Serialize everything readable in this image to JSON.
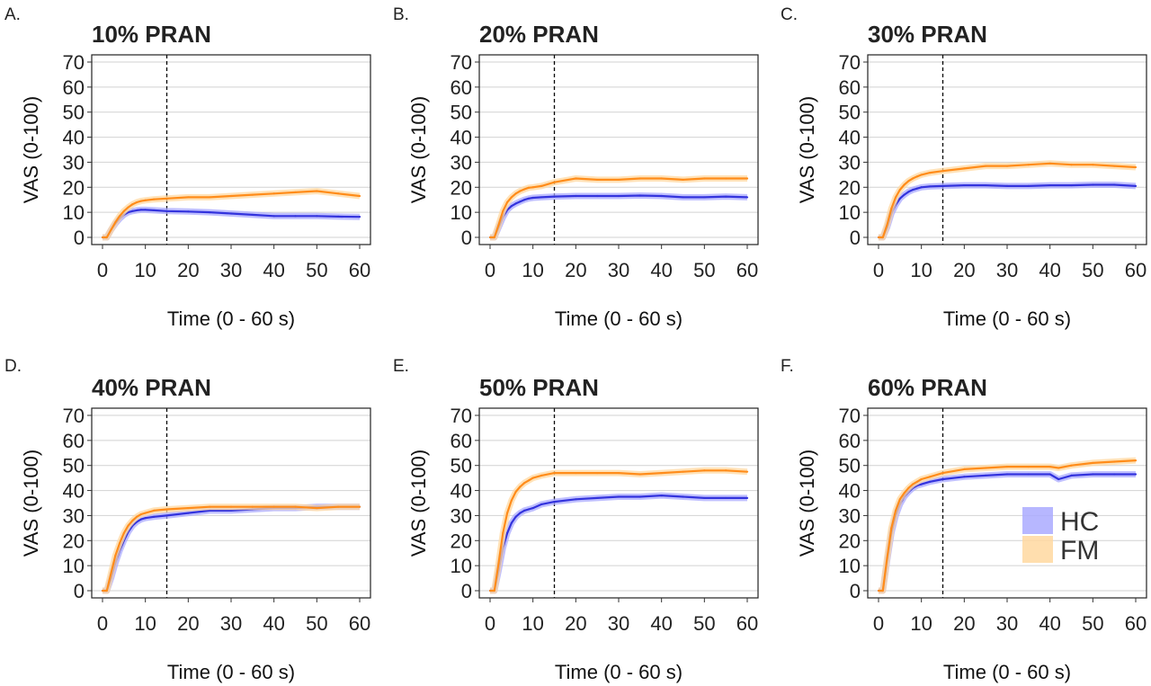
{
  "chart_data": [
    {
      "type": "line",
      "panel": "A.",
      "title": "10% PRAN",
      "xlabel": "Time (0 - 60 s)",
      "ylabel": "VAS (0-100)",
      "xlim": [
        0,
        60
      ],
      "ylim": [
        0,
        70
      ],
      "x_ticks": [
        "0",
        "10",
        "20",
        "30",
        "40",
        "50",
        "60"
      ],
      "y_ticks": [
        "0",
        "10",
        "20",
        "30",
        "40",
        "50",
        "60",
        "70"
      ],
      "marker_x": 15,
      "grid": "horizontal",
      "x": [
        0,
        1,
        2,
        3,
        4,
        5,
        6,
        7,
        8,
        9,
        10,
        12,
        15,
        20,
        25,
        30,
        35,
        40,
        45,
        50,
        55,
        60
      ],
      "series": [
        {
          "name": "HC",
          "color": "#3333dd",
          "band_color": "#aaaaff",
          "values": [
            0,
            0,
            3,
            5.5,
            7.5,
            9,
            10,
            10.5,
            10.8,
            11,
            11,
            10.8,
            10.5,
            10.3,
            10,
            9.5,
            9,
            8.5,
            8.5,
            8.5,
            8.3,
            8.2
          ]
        },
        {
          "name": "FM",
          "color": "#ff8c1a",
          "band_color": "#ffd8a0",
          "values": [
            0,
            0,
            3,
            6,
            8.5,
            10.5,
            12,
            13.2,
            14,
            14.5,
            14.8,
            15.2,
            15.5,
            16,
            16,
            16.5,
            17,
            17.5,
            18,
            18.5,
            17.5,
            16.5
          ]
        }
      ]
    },
    {
      "type": "line",
      "panel": "B.",
      "title": "20% PRAN",
      "xlabel": "Time (0 - 60 s)",
      "ylabel": "VAS (0-100)",
      "xlim": [
        0,
        60
      ],
      "ylim": [
        0,
        70
      ],
      "x_ticks": [
        "0",
        "10",
        "20",
        "30",
        "40",
        "50",
        "60"
      ],
      "y_ticks": [
        "0",
        "10",
        "20",
        "30",
        "40",
        "50",
        "60",
        "70"
      ],
      "marker_x": 15,
      "grid": "horizontal",
      "x": [
        0,
        1,
        2,
        3,
        4,
        5,
        6,
        7,
        8,
        9,
        10,
        12,
        15,
        20,
        25,
        30,
        35,
        40,
        45,
        50,
        55,
        60
      ],
      "series": [
        {
          "name": "HC",
          "color": "#3333dd",
          "band_color": "#aaaaff",
          "values": [
            0,
            0,
            4,
            8,
            11,
            12.5,
            13.5,
            14.3,
            15,
            15.5,
            15.8,
            16,
            16.3,
            16.5,
            16.5,
            16.5,
            16.7,
            16.5,
            16,
            16,
            16.3,
            16
          ]
        },
        {
          "name": "FM",
          "color": "#ff8c1a",
          "band_color": "#ffd8a0",
          "values": [
            0,
            0,
            5,
            10.5,
            14,
            16,
            17.5,
            18.5,
            19.2,
            19.8,
            20,
            20.5,
            22,
            23.5,
            23,
            23,
            23.5,
            23.5,
            23,
            23.5,
            23.5,
            23.5
          ]
        }
      ]
    },
    {
      "type": "line",
      "panel": "C.",
      "title": "30% PRAN",
      "xlabel": "Time (0 - 60 s)",
      "ylabel": "VAS (0-100)",
      "xlim": [
        0,
        60
      ],
      "ylim": [
        0,
        70
      ],
      "x_ticks": [
        "0",
        "10",
        "20",
        "30",
        "40",
        "50",
        "60"
      ],
      "y_ticks": [
        "0",
        "10",
        "20",
        "30",
        "40",
        "50",
        "60",
        "70"
      ],
      "marker_x": 15,
      "grid": "horizontal",
      "x": [
        0,
        1,
        2,
        3,
        4,
        5,
        6,
        7,
        8,
        9,
        10,
        12,
        15,
        20,
        25,
        30,
        35,
        40,
        45,
        50,
        55,
        60
      ],
      "series": [
        {
          "name": "HC",
          "color": "#3333dd",
          "band_color": "#aaaaff",
          "values": [
            0,
            0,
            4,
            9.5,
            13,
            15.5,
            17,
            18.2,
            19,
            19.5,
            20,
            20.3,
            20.5,
            20.8,
            20.8,
            20.5,
            20.5,
            20.8,
            20.8,
            21,
            21,
            20.5
          ]
        },
        {
          "name": "FM",
          "color": "#ff8c1a",
          "band_color": "#ffd8a0",
          "values": [
            0,
            0,
            5,
            11.5,
            16,
            19,
            21,
            22.5,
            23.5,
            24.3,
            25,
            25.8,
            26.5,
            27.5,
            28.5,
            28.5,
            29,
            29.5,
            29,
            29,
            28.5,
            28
          ]
        }
      ]
    },
    {
      "type": "line",
      "panel": "D.",
      "title": "40% PRAN",
      "xlabel": "Time (0 - 60 s)",
      "ylabel": "VAS (0-100)",
      "xlim": [
        0,
        60
      ],
      "ylim": [
        0,
        70
      ],
      "x_ticks": [
        "0",
        "10",
        "20",
        "30",
        "40",
        "50",
        "60"
      ],
      "y_ticks": [
        "0",
        "10",
        "20",
        "30",
        "40",
        "50",
        "60",
        "70"
      ],
      "marker_x": 15,
      "grid": "horizontal",
      "x": [
        0,
        1,
        2,
        3,
        4,
        5,
        6,
        7,
        8,
        9,
        10,
        12,
        15,
        20,
        25,
        30,
        35,
        40,
        45,
        50,
        55,
        60
      ],
      "series": [
        {
          "name": "HC",
          "color": "#3333dd",
          "band_color": "#aaaaff",
          "values": [
            0,
            0,
            5,
            11,
            16,
            20,
            23.5,
            26,
            27.5,
            28.5,
            29,
            29.5,
            30,
            31,
            32,
            32,
            32.5,
            33,
            33,
            33.5,
            33.5,
            33.5
          ]
        },
        {
          "name": "FM",
          "color": "#ff8c1a",
          "band_color": "#ffd8a0",
          "values": [
            0,
            0,
            7,
            14,
            19,
            23,
            26,
            28,
            29.5,
            30.5,
            31,
            32,
            32.5,
            33,
            33.5,
            33.5,
            33.5,
            33.5,
            33.5,
            33,
            33.5,
            33.5
          ]
        }
      ]
    },
    {
      "type": "line",
      "panel": "E.",
      "title": "50% PRAN",
      "xlabel": "Time (0 - 60 s)",
      "ylabel": "VAS (0-100)",
      "xlim": [
        0,
        60
      ],
      "ylim": [
        0,
        70
      ],
      "x_ticks": [
        "0",
        "10",
        "20",
        "30",
        "40",
        "50",
        "60"
      ],
      "y_ticks": [
        "0",
        "10",
        "20",
        "30",
        "40",
        "50",
        "60",
        "70"
      ],
      "marker_x": 15,
      "grid": "horizontal",
      "x": [
        0,
        1,
        2,
        3,
        4,
        5,
        6,
        7,
        8,
        9,
        10,
        12,
        15,
        20,
        25,
        30,
        35,
        40,
        45,
        50,
        55,
        60
      ],
      "series": [
        {
          "name": "HC",
          "color": "#3333dd",
          "band_color": "#aaaaff",
          "values": [
            0,
            0,
            8,
            17,
            23,
            27,
            29.5,
            31,
            32,
            32.5,
            33,
            34.5,
            35.5,
            36.5,
            37,
            37.5,
            37.5,
            38,
            37.5,
            37,
            37,
            37
          ]
        },
        {
          "name": "FM",
          "color": "#ff8c1a",
          "band_color": "#ffd8a0",
          "values": [
            0,
            0,
            11,
            23,
            31,
            36,
            39.5,
            41.5,
            43,
            44,
            45,
            46,
            47,
            47,
            47,
            47,
            46.5,
            47,
            47.5,
            48,
            48,
            47.5
          ]
        }
      ]
    },
    {
      "type": "line",
      "panel": "F.",
      "title": "60% PRAN",
      "xlabel": "Time (0 - 60 s)",
      "ylabel": "VAS (0-100)",
      "xlim": [
        0,
        60
      ],
      "ylim": [
        0,
        70
      ],
      "x_ticks": [
        "0",
        "10",
        "20",
        "30",
        "40",
        "50",
        "60"
      ],
      "y_ticks": [
        "0",
        "10",
        "20",
        "30",
        "40",
        "50",
        "60",
        "70"
      ],
      "marker_x": 15,
      "grid": "horizontal",
      "x": [
        0,
        1,
        2,
        3,
        4,
        5,
        6,
        7,
        8,
        9,
        10,
        12,
        15,
        20,
        25,
        30,
        35,
        40,
        42,
        45,
        50,
        55,
        60
      ],
      "series": [
        {
          "name": "HC",
          "color": "#3333dd",
          "band_color": "#aaaaff",
          "values": [
            0,
            0,
            12,
            23,
            30,
            34.5,
            37.5,
            39.5,
            41,
            42,
            42.5,
            43.5,
            44.5,
            45.5,
            46,
            46.5,
            46.5,
            46.5,
            44.5,
            46,
            46.5,
            46.5,
            46.5
          ]
        },
        {
          "name": "FM",
          "color": "#ff8c1a",
          "band_color": "#ffd8a0",
          "values": [
            0,
            0,
            13,
            25,
            32,
            36.5,
            39,
            41,
            42.5,
            43.5,
            44.5,
            45.5,
            47,
            48.5,
            49,
            49.5,
            49.5,
            49.5,
            49,
            50,
            51,
            51.5,
            52
          ]
        }
      ],
      "legend": {
        "position": "bottom-right",
        "entries": [
          "HC",
          "FM"
        ]
      }
    }
  ]
}
